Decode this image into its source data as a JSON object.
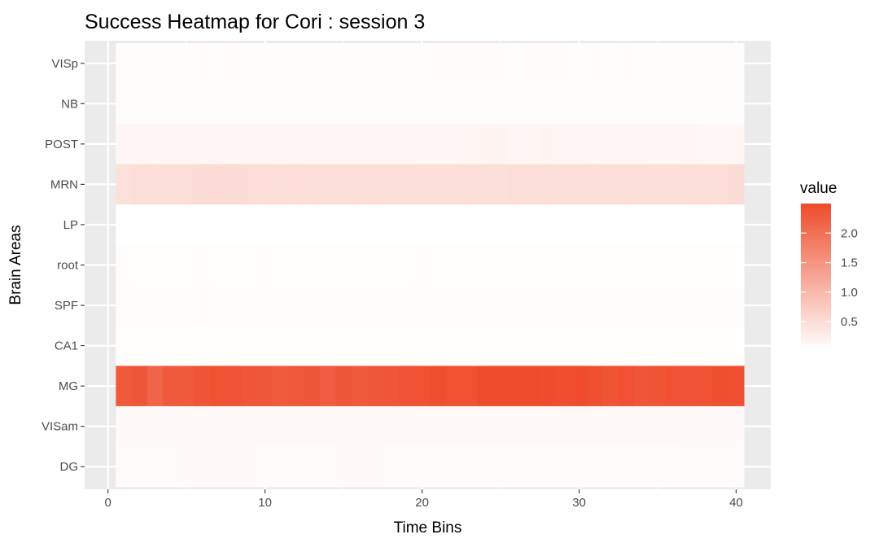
{
  "chart_data": {
    "type": "heatmap",
    "title": "Success Heatmap for Cori : session 3",
    "xlabel": "Time Bins",
    "ylabel": "Brain Areas",
    "x": [
      1,
      2,
      3,
      4,
      5,
      6,
      7,
      8,
      9,
      10,
      11,
      12,
      13,
      14,
      15,
      16,
      17,
      18,
      19,
      20,
      21,
      22,
      23,
      24,
      25,
      26,
      27,
      28,
      29,
      30,
      31,
      32,
      33,
      34,
      35,
      36,
      37,
      38,
      39,
      40
    ],
    "xlim": [
      0,
      40.5
    ],
    "x_ticks": [
      0,
      10,
      20,
      30,
      40
    ],
    "categories": [
      "VISp",
      "NB",
      "POST",
      "MRN",
      "LP",
      "root",
      "SPF",
      "CA1",
      "MG",
      "VISam",
      "DG"
    ],
    "rows": [
      {
        "name": "VISp",
        "values": [
          0.06,
          0.05,
          0.06,
          0.05,
          0.06,
          0.07,
          0.06,
          0.07,
          0.06,
          0.06,
          0.05,
          0.06,
          0.06,
          0.05,
          0.06,
          0.06,
          0.06,
          0.05,
          0.06,
          0.06,
          0.07,
          0.08,
          0.07,
          0.08,
          0.07,
          0.06,
          0.07,
          0.08,
          0.07,
          0.06,
          0.07,
          0.06,
          0.07,
          0.06,
          0.06,
          0.06,
          0.05,
          0.06,
          0.05,
          0.05
        ]
      },
      {
        "name": "NB",
        "values": [
          0.05,
          0.05,
          0.05,
          0.05,
          0.05,
          0.05,
          0.06,
          0.05,
          0.05,
          0.06,
          0.05,
          0.05,
          0.05,
          0.05,
          0.05,
          0.05,
          0.05,
          0.05,
          0.05,
          0.05,
          0.05,
          0.05,
          0.05,
          0.05,
          0.05,
          0.05,
          0.05,
          0.05,
          0.05,
          0.05,
          0.05,
          0.05,
          0.05,
          0.05,
          0.05,
          0.05,
          0.05,
          0.05,
          0.05,
          0.05
        ]
      },
      {
        "name": "POST",
        "values": [
          0.14,
          0.14,
          0.14,
          0.14,
          0.15,
          0.15,
          0.15,
          0.15,
          0.15,
          0.15,
          0.15,
          0.14,
          0.14,
          0.15,
          0.15,
          0.14,
          0.14,
          0.15,
          0.15,
          0.15,
          0.14,
          0.14,
          0.15,
          0.16,
          0.16,
          0.15,
          0.15,
          0.16,
          0.15,
          0.15,
          0.15,
          0.15,
          0.15,
          0.15,
          0.14,
          0.14,
          0.14,
          0.13,
          0.13,
          0.13
        ]
      },
      {
        "name": "MRN",
        "values": [
          0.45,
          0.47,
          0.46,
          0.47,
          0.48,
          0.5,
          0.51,
          0.5,
          0.49,
          0.49,
          0.48,
          0.49,
          0.48,
          0.47,
          0.47,
          0.47,
          0.48,
          0.48,
          0.47,
          0.46,
          0.46,
          0.46,
          0.47,
          0.47,
          0.46,
          0.47,
          0.47,
          0.48,
          0.47,
          0.47,
          0.46,
          0.47,
          0.48,
          0.47,
          0.46,
          0.46,
          0.47,
          0.48,
          0.49,
          0.5
        ]
      },
      {
        "name": "LP",
        "values": [
          0.02,
          0.02,
          0.02,
          0.02,
          0.02,
          0.02,
          0.02,
          0.02,
          0.02,
          0.02,
          0.02,
          0.02,
          0.02,
          0.02,
          0.02,
          0.02,
          0.02,
          0.02,
          0.02,
          0.02,
          0.02,
          0.02,
          0.02,
          0.02,
          0.02,
          0.02,
          0.02,
          0.02,
          0.02,
          0.02,
          0.02,
          0.02,
          0.02,
          0.02,
          0.02,
          0.02,
          0.02,
          0.02,
          0.02,
          0.02
        ]
      },
      {
        "name": "root",
        "values": [
          0.05,
          0.04,
          0.04,
          0.04,
          0.04,
          0.05,
          0.04,
          0.04,
          0.04,
          0.05,
          0.04,
          0.04,
          0.04,
          0.04,
          0.04,
          0.04,
          0.04,
          0.04,
          0.04,
          0.05,
          0.04,
          0.04,
          0.04,
          0.04,
          0.04,
          0.04,
          0.04,
          0.04,
          0.04,
          0.04,
          0.04,
          0.04,
          0.04,
          0.04,
          0.04,
          0.04,
          0.04,
          0.04,
          0.04,
          0.04
        ]
      },
      {
        "name": "SPF",
        "values": [
          0.06,
          0.06,
          0.06,
          0.06,
          0.06,
          0.07,
          0.06,
          0.06,
          0.06,
          0.06,
          0.06,
          0.06,
          0.06,
          0.06,
          0.06,
          0.06,
          0.06,
          0.06,
          0.06,
          0.06,
          0.06,
          0.06,
          0.06,
          0.06,
          0.06,
          0.06,
          0.06,
          0.06,
          0.06,
          0.06,
          0.06,
          0.06,
          0.06,
          0.06,
          0.06,
          0.06,
          0.06,
          0.06,
          0.06,
          0.06
        ]
      },
      {
        "name": "CA1",
        "values": [
          0.04,
          0.04,
          0.04,
          0.04,
          0.04,
          0.04,
          0.04,
          0.04,
          0.04,
          0.04,
          0.04,
          0.04,
          0.04,
          0.04,
          0.04,
          0.04,
          0.04,
          0.04,
          0.04,
          0.04,
          0.04,
          0.04,
          0.04,
          0.04,
          0.04,
          0.04,
          0.04,
          0.04,
          0.04,
          0.04,
          0.04,
          0.04,
          0.04,
          0.04,
          0.04,
          0.04,
          0.04,
          0.04,
          0.04,
          0.04
        ]
      },
      {
        "name": "MG",
        "values": [
          2.3,
          2.35,
          2.15,
          2.3,
          2.3,
          2.38,
          2.42,
          2.4,
          2.36,
          2.34,
          2.28,
          2.32,
          2.36,
          2.25,
          2.36,
          2.3,
          2.33,
          2.36,
          2.4,
          2.42,
          2.45,
          2.42,
          2.42,
          2.5,
          2.48,
          2.48,
          2.5,
          2.49,
          2.47,
          2.48,
          2.43,
          2.38,
          2.42,
          2.36,
          2.38,
          2.42,
          2.4,
          2.42,
          2.44,
          2.43
        ]
      },
      {
        "name": "VISam",
        "values": [
          0.09,
          0.09,
          0.09,
          0.09,
          0.1,
          0.1,
          0.1,
          0.1,
          0.11,
          0.11,
          0.12,
          0.11,
          0.11,
          0.11,
          0.1,
          0.1,
          0.11,
          0.11,
          0.11,
          0.11,
          0.11,
          0.11,
          0.11,
          0.11,
          0.11,
          0.12,
          0.11,
          0.11,
          0.12,
          0.11,
          0.11,
          0.11,
          0.1,
          0.1,
          0.1,
          0.1,
          0.09,
          0.09,
          0.09,
          0.09
        ]
      },
      {
        "name": "DG",
        "values": [
          0.08,
          0.08,
          0.08,
          0.08,
          0.09,
          0.09,
          0.09,
          0.09,
          0.09,
          0.08,
          0.08,
          0.08,
          0.08,
          0.08,
          0.09,
          0.09,
          0.09,
          0.08,
          0.08,
          0.08,
          0.08,
          0.08,
          0.08,
          0.08,
          0.08,
          0.08,
          0.08,
          0.08,
          0.08,
          0.08,
          0.08,
          0.08,
          0.08,
          0.08,
          0.08,
          0.08,
          0.08,
          0.08,
          0.07,
          0.07
        ]
      }
    ],
    "legend": {
      "title": "value",
      "placement": "right",
      "breaks": [
        2.0,
        1.5,
        1.0,
        0.5
      ],
      "break_labels": [
        "2.0",
        "1.5",
        "1.0",
        "0.5"
      ],
      "range": [
        0.02,
        2.5
      ],
      "low_color": "#ffffff",
      "high_color": "#ee4b2b"
    },
    "grid": true,
    "panel_background": "#ebebeb",
    "grid_color": "#ffffff"
  }
}
